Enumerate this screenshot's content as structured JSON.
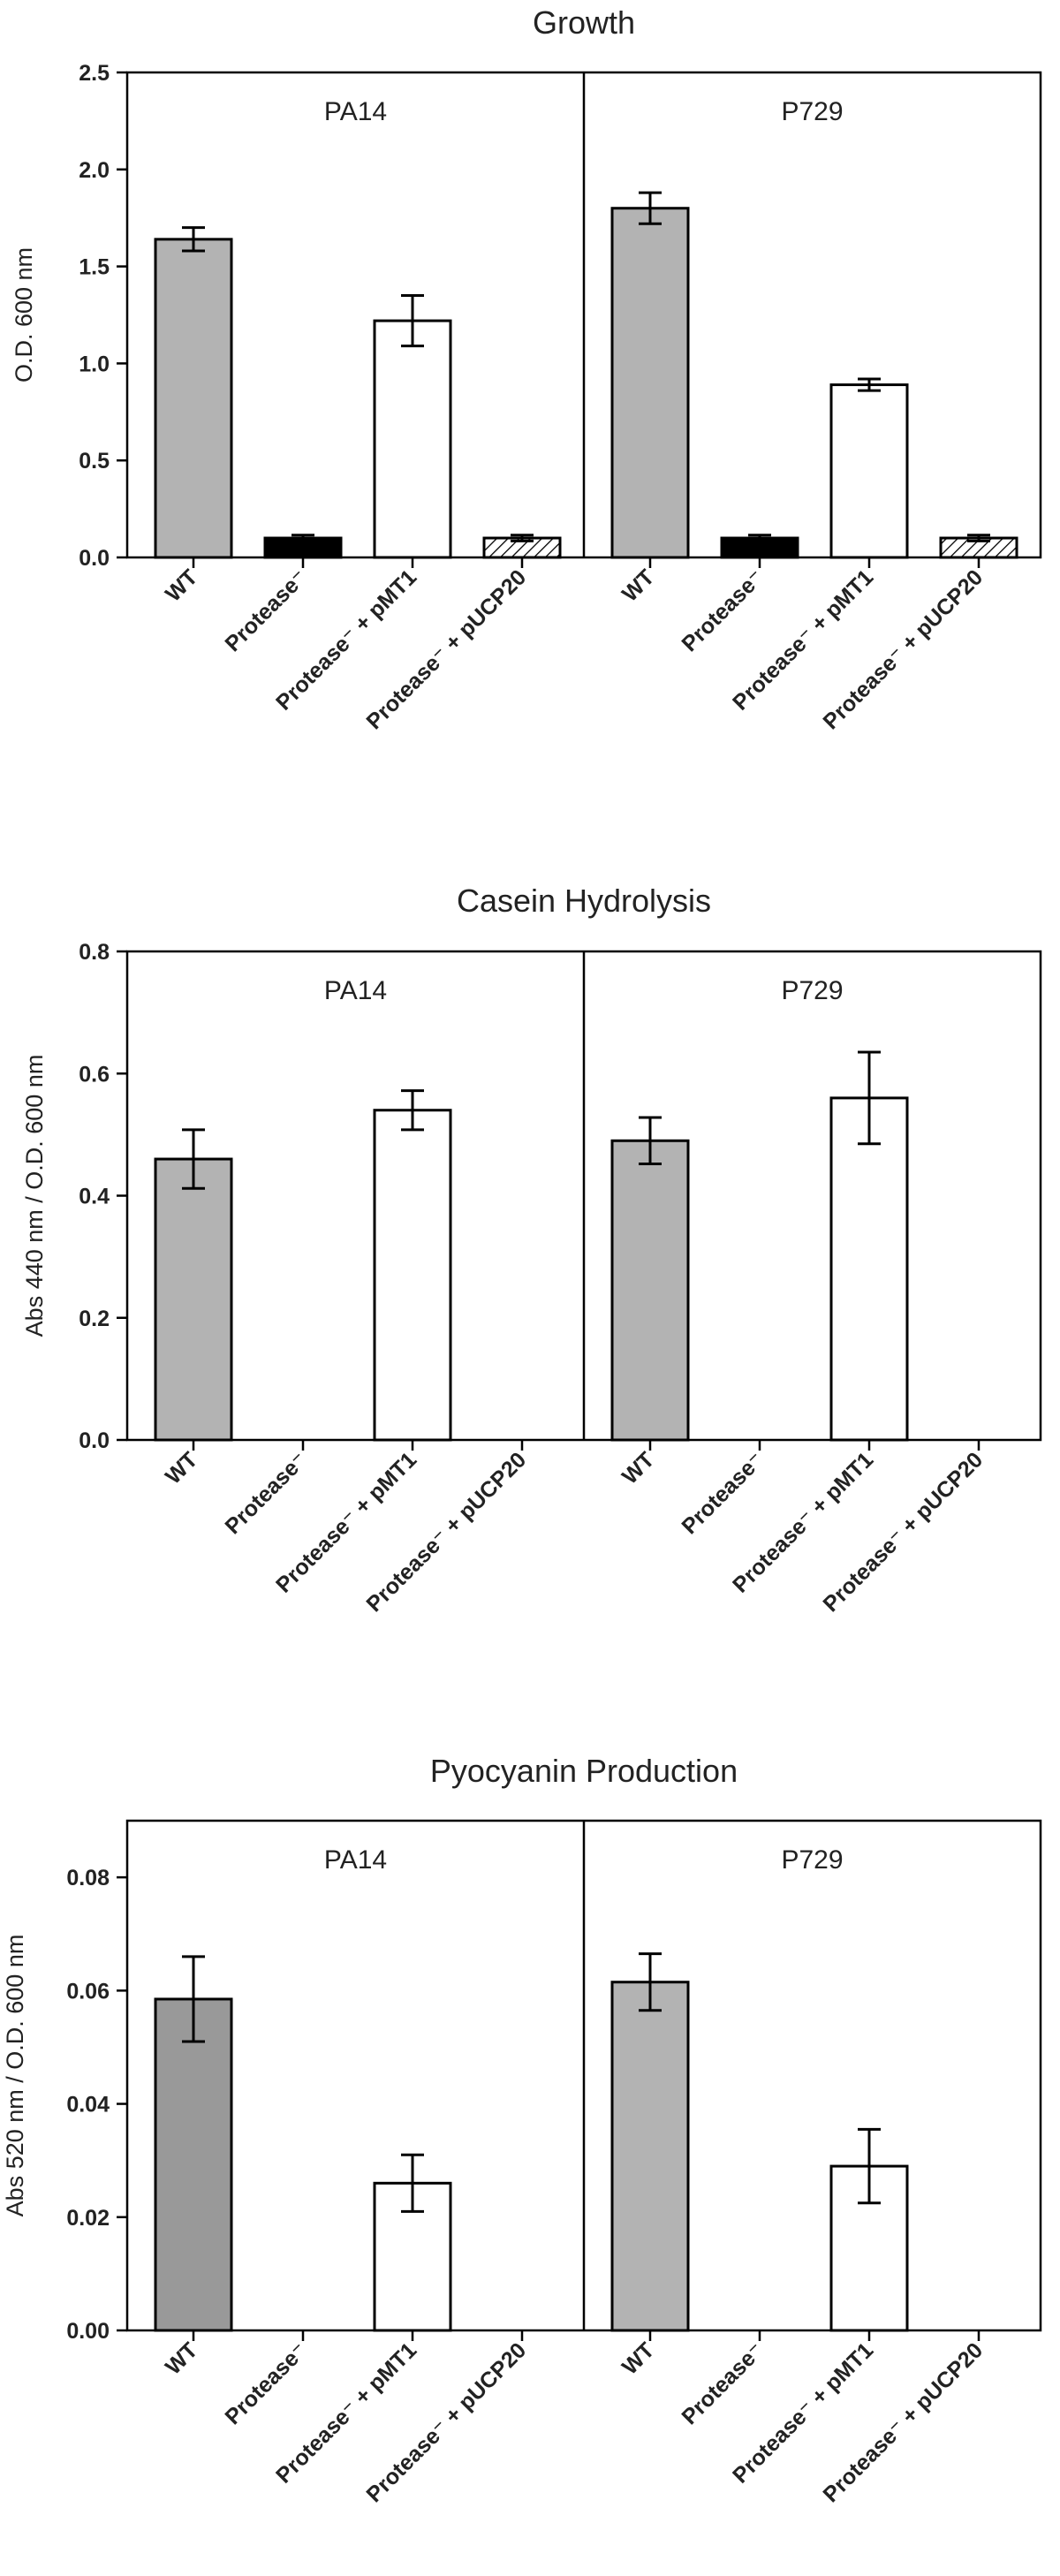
{
  "chart_data": [
    {
      "type": "bar",
      "title": "Growth",
      "ylabel": "O.D. 600 nm",
      "ylim": [
        0,
        2.5
      ],
      "yticks": [
        "0.0",
        "0.5",
        "1.0",
        "1.5",
        "2.0",
        "2.5"
      ],
      "categories": [
        "WT",
        "Protease⁻",
        "Protease⁻ + pMT1",
        "Protease⁻ + pUCP20"
      ],
      "series": [
        {
          "name": "PA14",
          "values": [
            1.64,
            0.1,
            1.22,
            0.1
          ],
          "errors": [
            0.06,
            0.015,
            0.13,
            0.015
          ],
          "fills": [
            "#b3b3b3",
            "#000000",
            "#ffffff",
            "hatch"
          ]
        },
        {
          "name": "P729",
          "values": [
            1.8,
            0.1,
            0.89,
            0.1
          ],
          "errors": [
            0.08,
            0.015,
            0.03,
            0.015
          ],
          "fills": [
            "#b3b3b3",
            "#000000",
            "#ffffff",
            "hatch"
          ]
        }
      ],
      "grid": false
    },
    {
      "type": "bar",
      "title": "Casein Hydrolysis",
      "ylabel": "Abs 440 nm / O.D. 600 nm",
      "ylim": [
        0,
        0.8
      ],
      "yticks": [
        "0.0",
        "0.2",
        "0.4",
        "0.6",
        "0.8"
      ],
      "categories": [
        "WT",
        "Protease⁻",
        "Protease⁻ + pMT1",
        "Protease⁻ + pUCP20"
      ],
      "series": [
        {
          "name": "PA14",
          "values": [
            0.46,
            0,
            0.54,
            0
          ],
          "errors": [
            0.048,
            0,
            0.032,
            0
          ],
          "fills": [
            "#b3b3b3",
            "#ffffff",
            "#ffffff",
            "#ffffff"
          ]
        },
        {
          "name": "P729",
          "values": [
            0.49,
            0,
            0.56,
            0
          ],
          "errors": [
            0.038,
            0,
            0.075,
            0
          ],
          "fills": [
            "#b3b3b3",
            "#ffffff",
            "#ffffff",
            "#ffffff"
          ]
        }
      ],
      "grid": false
    },
    {
      "type": "bar",
      "title": "Pyocyanin Production",
      "ylabel": "Abs 520 nm / O.D. 600 nm",
      "ylim": [
        0,
        0.09
      ],
      "yticks": [
        "0.00",
        "0.02",
        "0.04",
        "0.06",
        "0.08"
      ],
      "categories": [
        "WT",
        "Protease⁻",
        "Protease⁻ + pMT1",
        "Protease⁻ + pUCP20"
      ],
      "series": [
        {
          "name": "PA14",
          "values": [
            0.0585,
            0,
            0.026,
            0
          ],
          "errors": [
            0.0075,
            0,
            0.005,
            0
          ],
          "fills": [
            "#999999",
            "#ffffff",
            "#ffffff",
            "#ffffff"
          ]
        },
        {
          "name": "P729",
          "values": [
            0.0615,
            0,
            0.029,
            0
          ],
          "errors": [
            0.005,
            0,
            0.0065,
            0
          ],
          "fills": [
            "#b3b3b3",
            "#ffffff",
            "#ffffff",
            "#ffffff"
          ]
        }
      ],
      "grid": false
    }
  ]
}
